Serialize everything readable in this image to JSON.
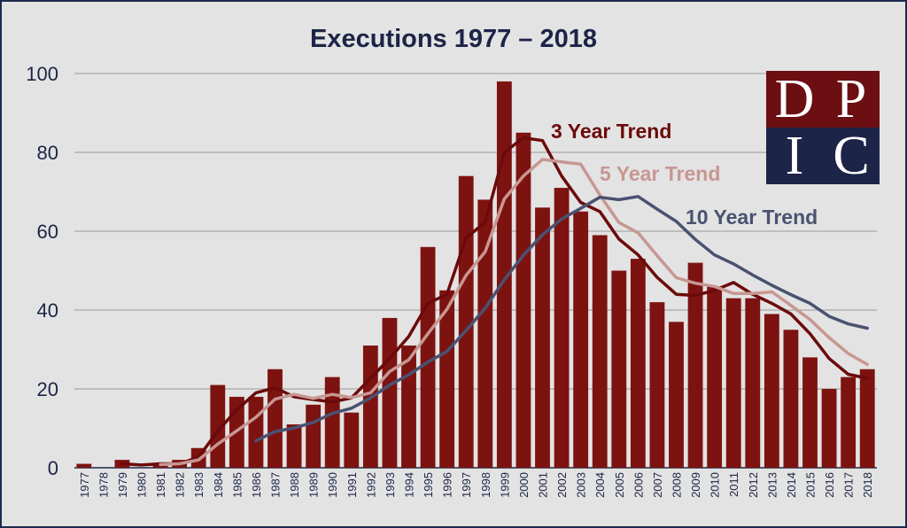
{
  "chart_data": {
    "type": "bar",
    "title": "Executions 1977 – 2018",
    "xlabel": "",
    "ylabel": "",
    "ylim": [
      0,
      100
    ],
    "yticks": [
      0,
      20,
      40,
      60,
      80,
      100
    ],
    "grid": true,
    "categories": [
      "1977",
      "1978",
      "1979",
      "1980",
      "1981",
      "1982",
      "1983",
      "1984",
      "1985",
      "1986",
      "1987",
      "1988",
      "1989",
      "1990",
      "1991",
      "1992",
      "1993",
      "1994",
      "1995",
      "1996",
      "1997",
      "1998",
      "1999",
      "2000",
      "2001",
      "2002",
      "2003",
      "2004",
      "2005",
      "2006",
      "2007",
      "2008",
      "2009",
      "2010",
      "2011",
      "2012",
      "2013",
      "2014",
      "2015",
      "2016",
      "2017",
      "2018"
    ],
    "series": [
      {
        "kind": "bar",
        "values": [
          1,
          0,
          2,
          0,
          1,
          2,
          5,
          21,
          18,
          18,
          25,
          11,
          16,
          23,
          14,
          31,
          38,
          31,
          56,
          45,
          74,
          68,
          98,
          85,
          66,
          71,
          65,
          59,
          50,
          53,
          42,
          37,
          52,
          46,
          43,
          43,
          39,
          35,
          28,
          20,
          23,
          25
        ]
      },
      {
        "kind": "line",
        "name": "3 Year Trend",
        "values": [
          null,
          null,
          1,
          0.7,
          1,
          1,
          2.7,
          9.3,
          14.7,
          19,
          20.3,
          18,
          17.3,
          16.7,
          17.7,
          22.7,
          27.7,
          33.3,
          41.7,
          44,
          58.3,
          62.3,
          80,
          83.7,
          83,
          74,
          67.3,
          65,
          58,
          54,
          48.3,
          44,
          43.7,
          45,
          47,
          44,
          41.7,
          39,
          34,
          27.7,
          23.7,
          22.7
        ]
      },
      {
        "kind": "line",
        "name": "5 Year Trend",
        "values": [
          null,
          null,
          null,
          null,
          0.8,
          1,
          2,
          6,
          9.4,
          12.8,
          17.4,
          18.6,
          17.6,
          18.6,
          17.8,
          19,
          24.4,
          27.4,
          34,
          40.2,
          48.8,
          54.8,
          68.2,
          74,
          78.2,
          77.6,
          77,
          69.2,
          62.2,
          59.6,
          53.8,
          48.2,
          46.8,
          46,
          44.2,
          44.2,
          44.6,
          41.2,
          37.6,
          33,
          29,
          26.2
        ]
      },
      {
        "kind": "line",
        "name": "10 Year Trend",
        "values": [
          null,
          null,
          null,
          null,
          null,
          null,
          null,
          null,
          null,
          6.8,
          9.2,
          10.1,
          11.5,
          13.8,
          15.1,
          17.7,
          21,
          23.6,
          26.8,
          29.5,
          34.8,
          40.5,
          47.7,
          53.9,
          59.1,
          63.1,
          65.8,
          68.6,
          68,
          68.8,
          65.6,
          62.5,
          57.9,
          54,
          51.7,
          48.9,
          46.3,
          43.9,
          41.7,
          38.4,
          36.5,
          35.4
        ]
      }
    ]
  },
  "colors": {
    "background": "#e3e3e3",
    "bar": "#7d1310",
    "gridline": "#a7a7a7",
    "axis_text": "#1c2447",
    "trend_3": "#6b0a0a",
    "trend_5": "#c79792",
    "trend_10": "#4a5272"
  },
  "logo": {
    "letters": [
      "D",
      "P",
      "I",
      "C"
    ]
  }
}
